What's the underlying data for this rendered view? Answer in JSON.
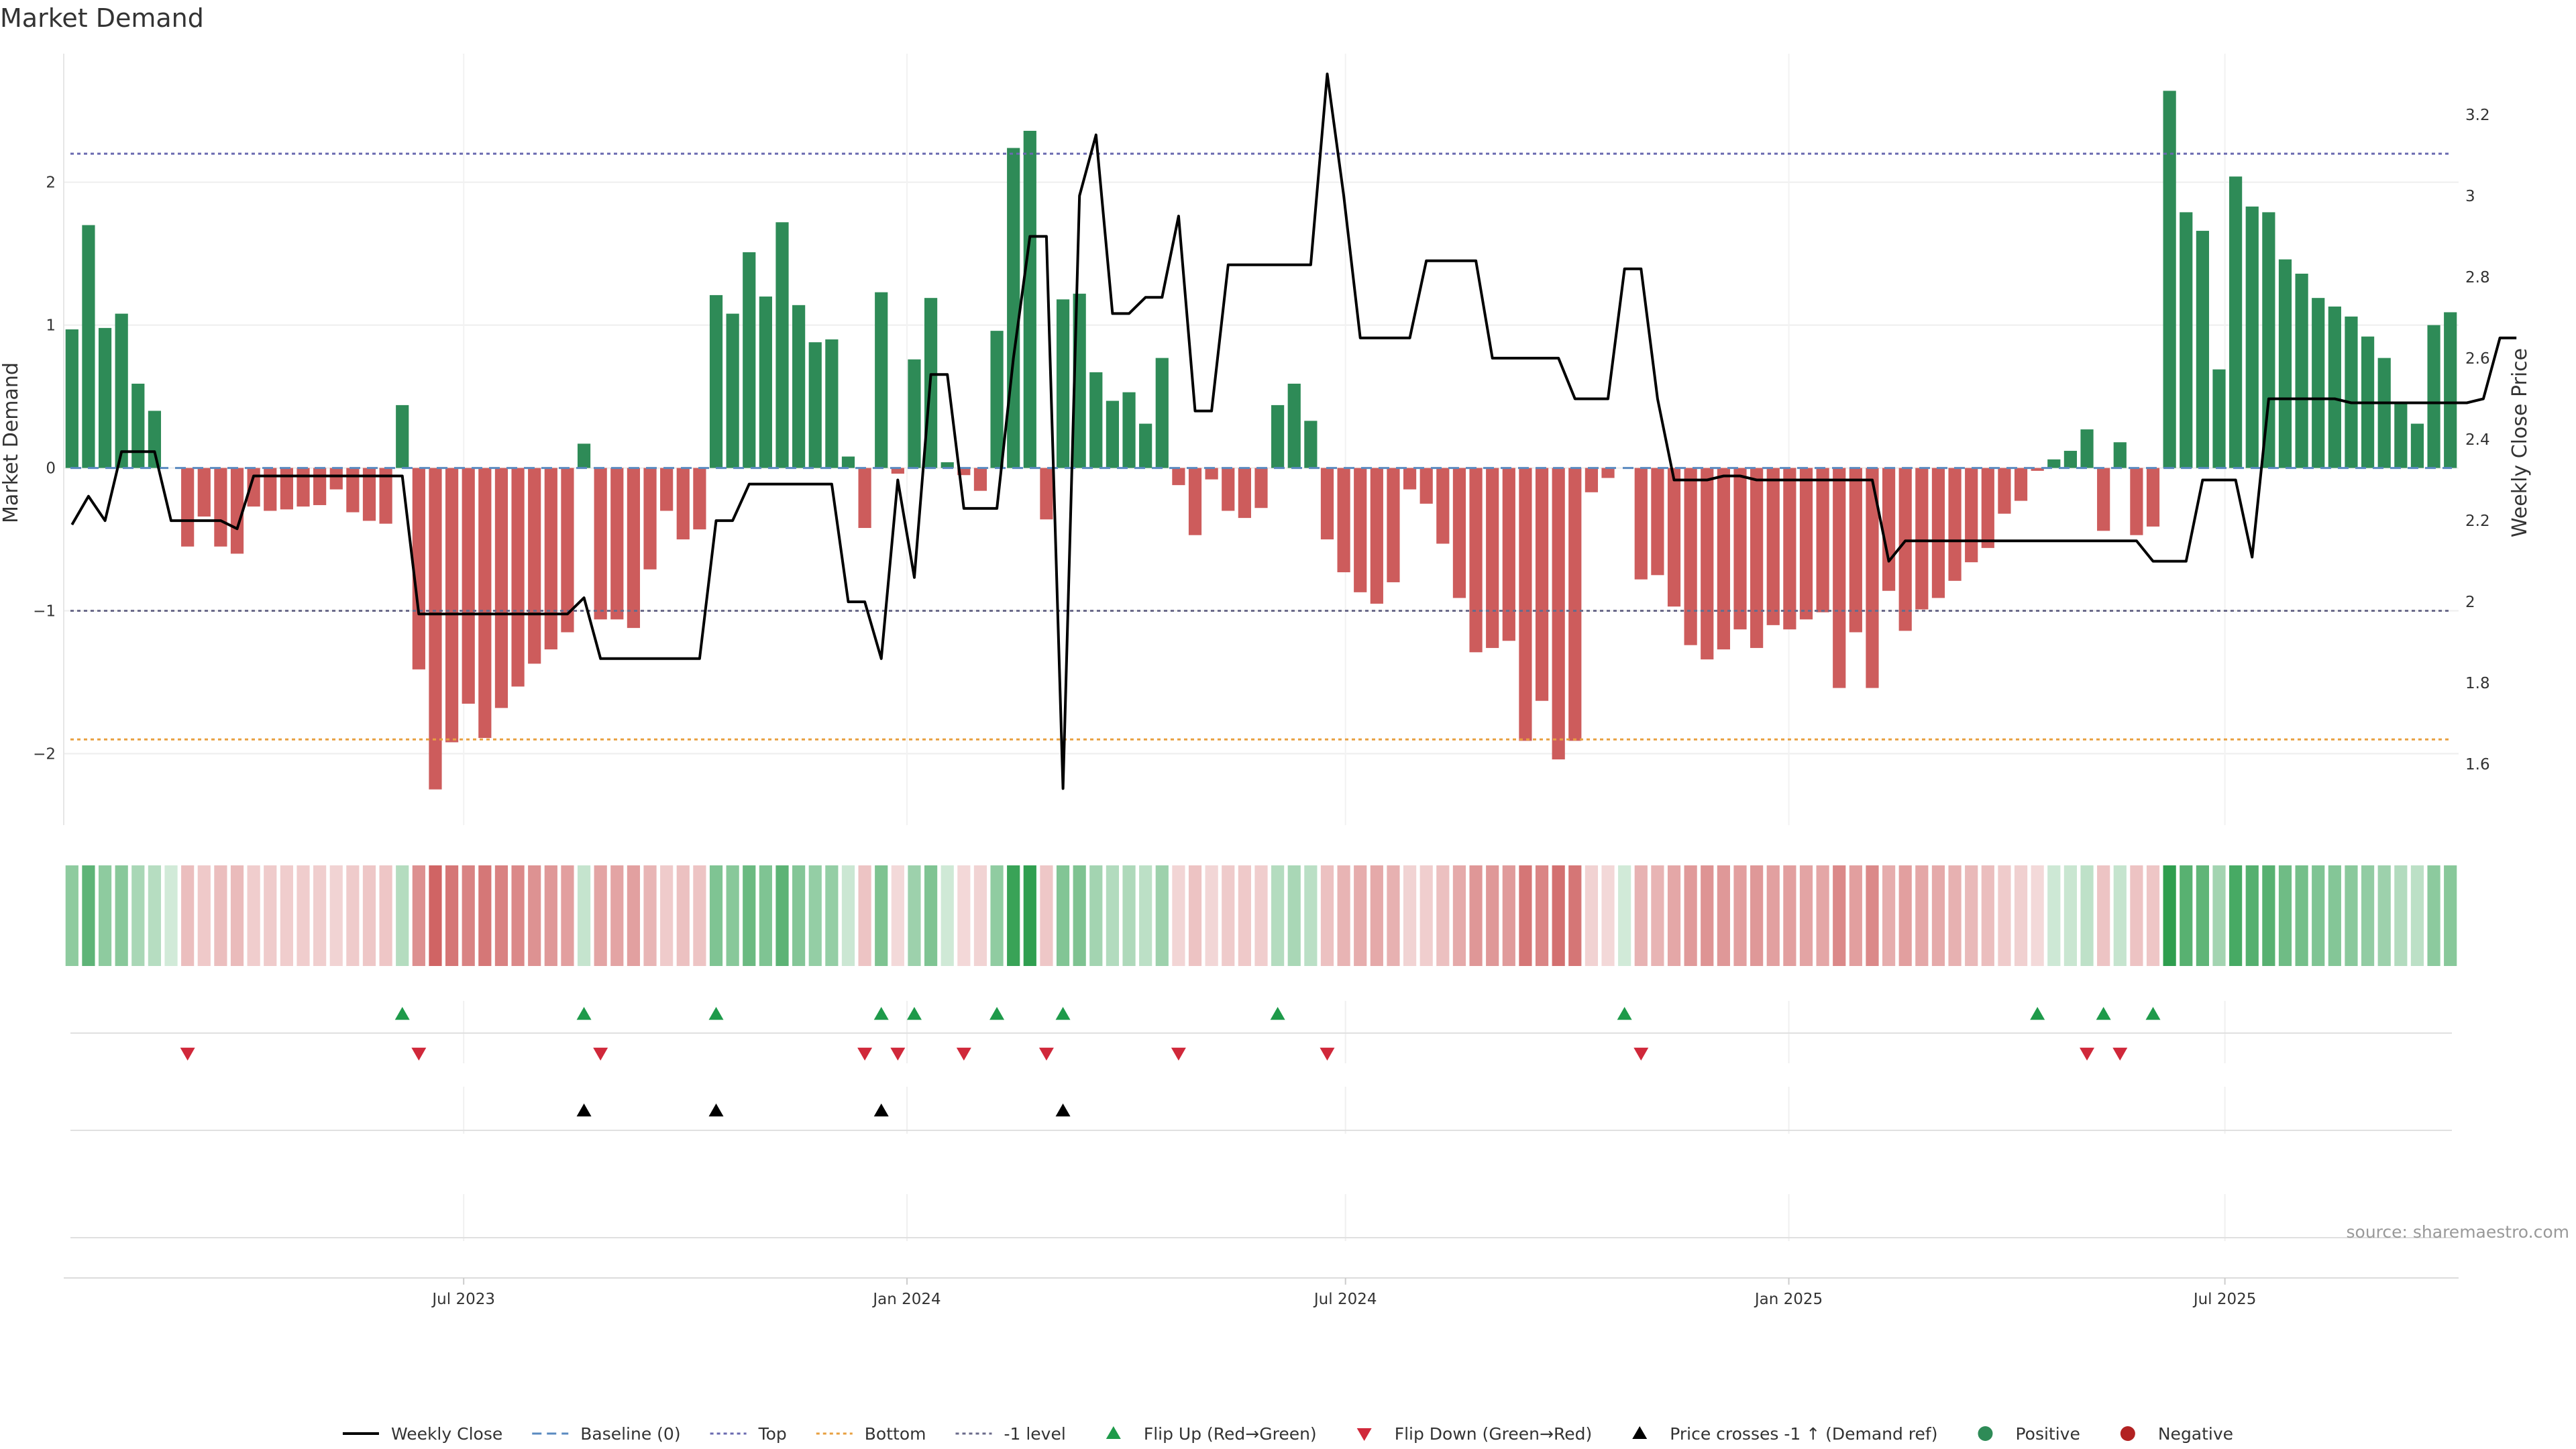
{
  "chart_data": {
    "type": "bar",
    "title": "Market Demand",
    "ylabel": "Market Demand",
    "y2label": "Weekly Close Price",
    "ylim": [
      -2.5,
      2.9
    ],
    "y2lim": [
      1.45,
      3.35
    ],
    "yticks": [
      2,
      1,
      0,
      -1,
      -2
    ],
    "ytick_labels": [
      "2",
      "1",
      "0",
      "−1",
      "−2"
    ],
    "y2ticks": [
      3.2,
      3.0,
      2.8,
      2.6,
      2.4,
      2.2,
      2.0,
      1.8,
      1.6
    ],
    "y2tick_labels": [
      "3.2",
      "3",
      "2.8",
      "2.6",
      "2.4",
      "2.2",
      "2",
      "1.8",
      "1.6"
    ],
    "x_start": "2023-01-16",
    "x_end": "2025-10-06",
    "xticks": [
      {
        "date": "2023-07-01",
        "label": "Jul 2023"
      },
      {
        "date": "2024-01-01",
        "label": "Jan 2024"
      },
      {
        "date": "2024-07-01",
        "label": "Jul 2024"
      },
      {
        "date": "2025-01-01",
        "label": "Jan 2025"
      },
      {
        "date": "2025-07-01",
        "label": "Jul 2025"
      }
    ],
    "reference_lines": [
      {
        "name": "Top",
        "value": 2.2,
        "color": "#6a6ab0"
      },
      {
        "name": "Bottom",
        "value": -1.9,
        "color": "#e8a040"
      },
      {
        "name": "-1 level",
        "value": -1,
        "color": "#6a6a8a"
      },
      {
        "name": "Baseline (0)",
        "value": 0,
        "color": "#5a8ac0"
      }
    ],
    "demand": [
      0.97,
      1.7,
      0.98,
      1.08,
      0.59,
      0.4,
      0,
      -0.55,
      -0.34,
      -0.55,
      -0.6,
      -0.27,
      -0.3,
      -0.29,
      -0.27,
      -0.26,
      -0.15,
      -0.31,
      -0.37,
      -0.39,
      0.44,
      -1.41,
      -2.25,
      -1.92,
      -1.65,
      -1.89,
      -1.68,
      -1.53,
      -1.37,
      -1.27,
      -1.15,
      0.17,
      -1.06,
      -1.06,
      -1.12,
      -0.71,
      -0.3,
      -0.5,
      -0.43,
      1.21,
      1.08,
      1.51,
      1.2,
      1.72,
      1.14,
      0.88,
      0.9,
      0.08,
      -0.42,
      1.23,
      -0.04,
      0.76,
      1.19,
      0.04,
      -0.05,
      -0.16,
      0.96,
      2.24,
      2.36,
      -0.36,
      1.18,
      1.22,
      0.67,
      0.47,
      0.53,
      0.31,
      0.77,
      -0.12,
      -0.47,
      -0.08,
      -0.3,
      -0.35,
      -0.28,
      0.44,
      0.59,
      0.33,
      -0.5,
      -0.73,
      -0.87,
      -0.95,
      -0.8,
      -0.15,
      -0.25,
      -0.53,
      -0.91,
      -1.29,
      -1.26,
      -1.21,
      -1.91,
      -1.63,
      -2.04,
      -1.91,
      -0.17,
      -0.07,
      0,
      -0.78,
      -0.75,
      -0.97,
      -1.24,
      -1.34,
      -1.27,
      -1.13,
      -1.26,
      -1.1,
      -1.13,
      -1.06,
      -1.01,
      -1.54,
      -1.15,
      -1.54,
      -0.86,
      -1.14,
      -0.99,
      -0.91,
      -0.79,
      -0.66,
      -0.56,
      -0.32,
      -0.23,
      -0.02,
      0.06,
      0.12,
      0.27,
      -0.44,
      0.18,
      -0.47,
      -0.41,
      2.64,
      1.79,
      1.66,
      0.69,
      2.04,
      1.83,
      1.79,
      1.46,
      1.36,
      1.19,
      1.13,
      1.06,
      0.92,
      0.77,
      0.46,
      0.31,
      1.0,
      1.09
    ],
    "weekly_close": [
      2.19,
      2.26,
      2.2,
      2.37,
      2.37,
      2.37,
      2.2,
      2.2,
      2.2,
      2.2,
      2.18,
      2.31,
      2.31,
      2.31,
      2.31,
      2.31,
      2.31,
      2.31,
      2.31,
      2.31,
      2.31,
      1.97,
      1.97,
      1.97,
      1.97,
      1.97,
      1.97,
      1.97,
      1.97,
      1.97,
      1.97,
      2.01,
      1.86,
      1.86,
      1.86,
      1.86,
      1.86,
      1.86,
      1.86,
      2.2,
      2.2,
      2.29,
      2.29,
      2.29,
      2.29,
      2.29,
      2.29,
      2.0,
      2.0,
      1.86,
      2.3,
      2.06,
      2.56,
      2.56,
      2.23,
      2.23,
      2.23,
      2.6,
      2.9,
      2.9,
      1.54,
      3.0,
      3.15,
      2.71,
      2.71,
      2.75,
      2.75,
      2.95,
      2.47,
      2.47,
      2.83,
      2.83,
      2.83,
      2.83,
      2.83,
      2.83,
      3.3,
      3.0,
      2.65,
      2.65,
      2.65,
      2.65,
      2.84,
      2.84,
      2.84,
      2.84,
      2.6,
      2.6,
      2.6,
      2.6,
      2.6,
      2.5,
      2.5,
      2.5,
      2.82,
      2.82,
      2.5,
      2.3,
      2.3,
      2.3,
      2.31,
      2.31,
      2.3,
      2.3,
      2.3,
      2.3,
      2.3,
      2.3,
      2.3,
      2.3,
      2.1,
      2.15,
      2.15,
      2.15,
      2.15,
      2.15,
      2.15,
      2.15,
      2.15,
      2.15,
      2.15,
      2.15,
      2.15,
      2.15,
      2.15,
      2.15,
      2.1,
      2.1,
      2.1,
      2.3,
      2.3,
      2.3,
      2.11,
      2.5,
      2.5,
      2.5,
      2.5,
      2.5,
      2.49,
      2.49,
      2.49,
      2.49,
      2.49,
      2.49,
      2.49,
      2.49,
      2.5,
      2.65,
      2.65
    ],
    "flip_up_weeks": [
      20,
      31,
      39,
      49,
      51,
      56,
      60,
      73,
      94,
      119,
      123,
      126
    ],
    "flip_down_weeks": [
      7,
      21,
      32,
      48,
      50,
      54,
      59,
      67,
      76,
      95,
      122,
      124
    ],
    "price_cross_weeks": [
      31,
      39,
      49,
      60
    ],
    "series": [
      {
        "name": "Weekly Close",
        "color": "#000000"
      },
      {
        "name": "Baseline (0)",
        "color": "#5a8ac0"
      },
      {
        "name": "Top",
        "color": "#6a6ab0"
      },
      {
        "name": "Bottom",
        "color": "#e8a040"
      },
      {
        "name": "-1 level",
        "color": "#6a6a8a"
      },
      {
        "name": "Flip Up (Red→Green)",
        "color": "#1e9a4a"
      },
      {
        "name": "Flip Down (Green→Red)",
        "color": "#d0283a"
      },
      {
        "name": "Price crosses -1 ↑ (Demand ref)",
        "color": "#000000"
      },
      {
        "name": "Positive",
        "color": "#2e8b57"
      },
      {
        "name": "Negative",
        "color": "#b22222"
      }
    ],
    "colors": {
      "positive_bar": "#2e8b57",
      "negative_bar": "#cd5c5c",
      "price_line": "#000000",
      "heat_positive": "#2e9e4e",
      "heat_negative": "#cd5c5c"
    },
    "legend_position": "bottom-center",
    "grid": true
  },
  "source": "source: sharemaestro.com"
}
